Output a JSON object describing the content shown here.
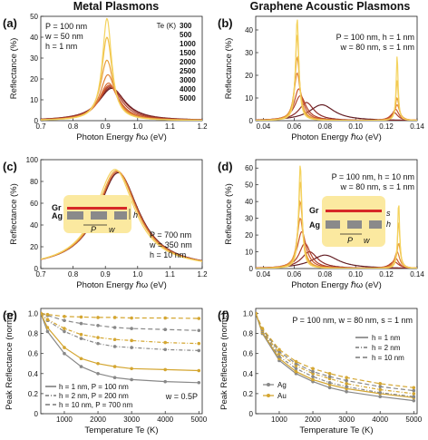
{
  "columns": {
    "left": "Metal Plasmons",
    "right": "Graphene Acoustic Plasmons"
  },
  "chart_data": [
    {
      "panel": "(a)",
      "type": "line",
      "xlabel": "Photon Energy ℏω (eV)",
      "ylabel": "Reflectance (%)",
      "xlim": [
        0.7,
        1.2
      ],
      "ylim": [
        0,
        50
      ],
      "xticks": [
        "0.7",
        "0.8",
        "0.9",
        "1.0",
        "1.1",
        "1.2"
      ],
      "yticks": [
        "0",
        "10",
        "20",
        "30",
        "40",
        "50"
      ],
      "annotations": [
        "P = 100 nm",
        "w = 50 nm",
        "h = 1 nm"
      ],
      "legend_title": "Te (K)",
      "series": [
        {
          "name": "300",
          "color": "#f4d35e",
          "peaks": [
            {
              "x": 0.905,
              "y": 49,
              "width": 0.035
            }
          ]
        },
        {
          "name": "500",
          "color": "#f0c04a",
          "peaks": [
            {
              "x": 0.905,
              "y": 40,
              "width": 0.04
            }
          ]
        },
        {
          "name": "1000",
          "color": "#e9a03b",
          "peaks": [
            {
              "x": 0.905,
              "y": 29,
              "width": 0.05
            }
          ]
        },
        {
          "name": "1500",
          "color": "#e08538",
          "peaks": [
            {
              "x": 0.908,
              "y": 22,
              "width": 0.06
            }
          ]
        },
        {
          "name": "2000",
          "color": "#d96d34",
          "peaks": [
            {
              "x": 0.91,
              "y": 18,
              "width": 0.07
            }
          ]
        },
        {
          "name": "2500",
          "color": "#c8552e",
          "peaks": [
            {
              "x": 0.912,
              "y": 17,
              "width": 0.075
            }
          ]
        },
        {
          "name": "3000",
          "color": "#b2432b",
          "peaks": [
            {
              "x": 0.915,
              "y": 16.5,
              "width": 0.085
            }
          ]
        },
        {
          "name": "4000",
          "color": "#8c2c2a",
          "peaks": [
            {
              "x": 0.918,
              "y": 16,
              "width": 0.095
            }
          ]
        },
        {
          "name": "5000",
          "color": "#641e24",
          "peaks": [
            {
              "x": 0.92,
              "y": 15.5,
              "width": 0.1
            }
          ]
        }
      ]
    },
    {
      "panel": "(b)",
      "type": "line",
      "xlabel": "Photon Energy ℏω (eV)",
      "ylabel": "Reflectance (%)",
      "xlim": [
        0.035,
        0.14
      ],
      "ylim": [
        0,
        46
      ],
      "xticks": [
        "0.04",
        "0.06",
        "0.08",
        "0.10",
        "0.12",
        "0.14"
      ],
      "yticks": [
        "0",
        "10",
        "20",
        "30",
        "40"
      ],
      "annotations": [
        "P = 100 nm, h = 1 nm",
        "w = 80 nm, s = 1 nm"
      ],
      "series": [
        {
          "color": "#f4d35e",
          "peaks": [
            {
              "x": 0.062,
              "y": 45,
              "width": 0.0025
            },
            {
              "x": 0.127,
              "y": 29,
              "width": 0.0015
            }
          ]
        },
        {
          "color": "#f0c04a",
          "peaks": [
            {
              "x": 0.062,
              "y": 38,
              "width": 0.003
            },
            {
              "x": 0.127,
              "y": 18,
              "width": 0.002
            }
          ]
        },
        {
          "color": "#e9a03b",
          "peaks": [
            {
              "x": 0.062,
              "y": 28,
              "width": 0.004
            },
            {
              "x": 0.127,
              "y": 10,
              "width": 0.003
            }
          ]
        },
        {
          "color": "#e08538",
          "peaks": [
            {
              "x": 0.062,
              "y": 21,
              "width": 0.005
            },
            {
              "x": 0.127,
              "y": 7,
              "width": 0.004
            }
          ]
        },
        {
          "color": "#c8552e",
          "peaks": [
            {
              "x": 0.063,
              "y": 14,
              "width": 0.007
            },
            {
              "x": 0.126,
              "y": 5,
              "width": 0.005
            }
          ]
        },
        {
          "color": "#b2432b",
          "peaks": [
            {
              "x": 0.064,
              "y": 11,
              "width": 0.009
            },
            {
              "x": 0.125,
              "y": 3.5,
              "width": 0.006
            }
          ]
        },
        {
          "color": "#8c2c2a",
          "peaks": [
            {
              "x": 0.068,
              "y": 8,
              "width": 0.012
            }
          ]
        },
        {
          "color": "#641e24",
          "peaks": [
            {
              "x": 0.078,
              "y": 7,
              "width": 0.02
            }
          ]
        }
      ]
    },
    {
      "panel": "(c)",
      "type": "line",
      "xlabel": "Photon Energy ℏω (eV)",
      "ylabel": "Reflectance (%)",
      "xlim": [
        0.7,
        1.2
      ],
      "ylim": [
        0,
        100
      ],
      "xticks": [
        "0.7",
        "0.8",
        "0.9",
        "1.0",
        "1.1",
        "1.2"
      ],
      "yticks": [
        "0",
        "20",
        "40",
        "60",
        "80",
        "100"
      ],
      "annotations": [
        "P = 700 nm",
        "w = 350 nm",
        "h = 10 nm"
      ],
      "inset_labels": [
        "Gr",
        "Ag",
        "P",
        "w",
        "h"
      ],
      "series": [
        {
          "color": "#f4d35e",
          "peaks": [
            {
              "x": 0.93,
              "y": 91,
              "width": 0.15
            }
          ]
        },
        {
          "color": "#e9a03b",
          "peaks": [
            {
              "x": 0.935,
              "y": 90,
              "width": 0.152
            }
          ]
        },
        {
          "color": "#c8552e",
          "peaks": [
            {
              "x": 0.938,
              "y": 89,
              "width": 0.154
            }
          ]
        },
        {
          "color": "#641e24",
          "peaks": [
            {
              "x": 0.94,
              "y": 88,
              "width": 0.156
            }
          ]
        }
      ]
    },
    {
      "panel": "(d)",
      "type": "line",
      "xlabel": "Photon Energy ℏω (eV)",
      "ylabel": "Reflectance (%)",
      "xlim": [
        0.035,
        0.14
      ],
      "ylim": [
        0,
        65
      ],
      "xticks": [
        "0.04",
        "0.06",
        "0.08",
        "0.10",
        "0.12",
        "0.14"
      ],
      "yticks": [
        "0",
        "10",
        "20",
        "30",
        "40",
        "50",
        "60"
      ],
      "annotations": [
        "P = 100 nm, h = 10 nm",
        "w = 80 nm, s = 1 nm"
      ],
      "inset_labels": [
        "Gr",
        "Ag",
        "P",
        "w",
        "s",
        "h"
      ],
      "series": [
        {
          "color": "#f4d35e",
          "peaks": [
            {
              "x": 0.064,
              "y": 62,
              "width": 0.0025
            },
            {
              "x": 0.128,
              "y": 40,
              "width": 0.0015
            }
          ]
        },
        {
          "color": "#f0c04a",
          "peaks": [
            {
              "x": 0.064,
              "y": 52,
              "width": 0.003
            },
            {
              "x": 0.128,
              "y": 28,
              "width": 0.002
            }
          ]
        },
        {
          "color": "#e9a03b",
          "peaks": [
            {
              "x": 0.064,
              "y": 40,
              "width": 0.004
            },
            {
              "x": 0.128,
              "y": 15,
              "width": 0.003
            }
          ]
        },
        {
          "color": "#e08538",
          "peaks": [
            {
              "x": 0.064,
              "y": 30,
              "width": 0.005
            },
            {
              "x": 0.127,
              "y": 10,
              "width": 0.004
            }
          ]
        },
        {
          "color": "#c8552e",
          "peaks": [
            {
              "x": 0.065,
              "y": 22,
              "width": 0.007
            },
            {
              "x": 0.126,
              "y": 6,
              "width": 0.005
            }
          ]
        },
        {
          "color": "#b2432b",
          "peaks": [
            {
              "x": 0.067,
              "y": 15,
              "width": 0.009
            },
            {
              "x": 0.125,
              "y": 4,
              "width": 0.007
            }
          ]
        },
        {
          "color": "#8c2c2a",
          "peaks": [
            {
              "x": 0.07,
              "y": 10,
              "width": 0.013
            }
          ]
        },
        {
          "color": "#641e24",
          "peaks": [
            {
              "x": 0.08,
              "y": 8,
              "width": 0.022
            }
          ]
        }
      ]
    },
    {
      "panel": "(e)",
      "type": "line",
      "xlabel": "Temperature Te (K)",
      "ylabel": "Peak Reflectance (norm.)",
      "xlim": [
        300,
        5100
      ],
      "ylim": [
        0,
        1.05
      ],
      "xticks": [
        "1000",
        "2000",
        "3000",
        "4000",
        "5000"
      ],
      "yticks": [
        "0",
        "0.2",
        "0.4",
        "0.6",
        "0.8",
        "1.0"
      ],
      "annotations": [
        "w = 0.5P"
      ],
      "legend": [
        "h = 1 nm, P = 100 nm",
        "h = 2 nm, P = 200 nm",
        "h = 10 nm, P = 700 nm"
      ],
      "x": [
        300,
        500,
        1000,
        1500,
        2000,
        2500,
        3000,
        4000,
        5000
      ],
      "series": [
        {
          "name": "Ag h=1",
          "color": "#888888",
          "dash": "",
          "values": [
            1.0,
            0.82,
            0.6,
            0.47,
            0.4,
            0.36,
            0.34,
            0.32,
            0.31
          ]
        },
        {
          "name": "Au h=1",
          "color": "#d4a631",
          "dash": "",
          "values": [
            1.0,
            0.86,
            0.66,
            0.55,
            0.5,
            0.47,
            0.45,
            0.44,
            0.43
          ]
        },
        {
          "name": "Ag h=2",
          "color": "#888888",
          "dash": "4,2,1,2",
          "values": [
            1.0,
            0.93,
            0.82,
            0.75,
            0.7,
            0.67,
            0.66,
            0.64,
            0.63
          ]
        },
        {
          "name": "Au h=2",
          "color": "#d4a631",
          "dash": "4,2,1,2",
          "values": [
            1.0,
            0.94,
            0.85,
            0.79,
            0.76,
            0.74,
            0.73,
            0.71,
            0.7
          ]
        },
        {
          "name": "Ag h=10",
          "color": "#888888",
          "dash": "5,3",
          "values": [
            1.0,
            0.98,
            0.93,
            0.9,
            0.88,
            0.86,
            0.85,
            0.84,
            0.83
          ]
        },
        {
          "name": "Au h=10",
          "color": "#d4a631",
          "dash": "5,3",
          "values": [
            1.0,
            0.99,
            0.97,
            0.965,
            0.96,
            0.96,
            0.955,
            0.955,
            0.95
          ]
        }
      ]
    },
    {
      "panel": "(f)",
      "type": "line",
      "xlabel": "Temperature Te (K)",
      "ylabel": "Peak Reflectance (norm.)",
      "xlim": [
        300,
        5100
      ],
      "ylim": [
        0,
        1.05
      ],
      "xticks": [
        "1000",
        "2000",
        "3000",
        "4000",
        "5000"
      ],
      "yticks": [
        "0",
        "0.2",
        "0.4",
        "0.6",
        "0.8",
        "1.0"
      ],
      "annotations": [
        "P = 100 nm, w = 80 nm, s = 1 nm"
      ],
      "legend": [
        "h = 1 nm",
        "h = 2 nm",
        "h = 10 nm"
      ],
      "metal_legend": [
        "Ag",
        "Au"
      ],
      "x": [
        300,
        500,
        1000,
        1500,
        2000,
        2500,
        3000,
        4000,
        5000
      ],
      "series": [
        {
          "name": "Ag h=1",
          "color": "#888888",
          "dash": "",
          "values": [
            1.0,
            0.8,
            0.53,
            0.4,
            0.32,
            0.26,
            0.22,
            0.17,
            0.13
          ]
        },
        {
          "name": "Au h=1",
          "color": "#d4a631",
          "dash": "",
          "values": [
            1.0,
            0.81,
            0.55,
            0.42,
            0.34,
            0.29,
            0.25,
            0.2,
            0.16
          ]
        },
        {
          "name": "Ag h=2",
          "color": "#888888",
          "dash": "4,2,1,2",
          "values": [
            1.0,
            0.82,
            0.57,
            0.45,
            0.37,
            0.31,
            0.27,
            0.21,
            0.17
          ]
        },
        {
          "name": "Au h=2",
          "color": "#d4a631",
          "dash": "4,2,1,2",
          "values": [
            1.0,
            0.83,
            0.6,
            0.48,
            0.4,
            0.35,
            0.3,
            0.24,
            0.2
          ]
        },
        {
          "name": "Ag h=10",
          "color": "#888888",
          "dash": "5,3",
          "values": [
            1.0,
            0.84,
            0.62,
            0.5,
            0.42,
            0.37,
            0.33,
            0.27,
            0.23
          ]
        },
        {
          "name": "Au h=10",
          "color": "#d4a631",
          "dash": "5,3",
          "values": [
            1.0,
            0.85,
            0.64,
            0.52,
            0.45,
            0.4,
            0.36,
            0.3,
            0.26
          ]
        }
      ]
    }
  ]
}
